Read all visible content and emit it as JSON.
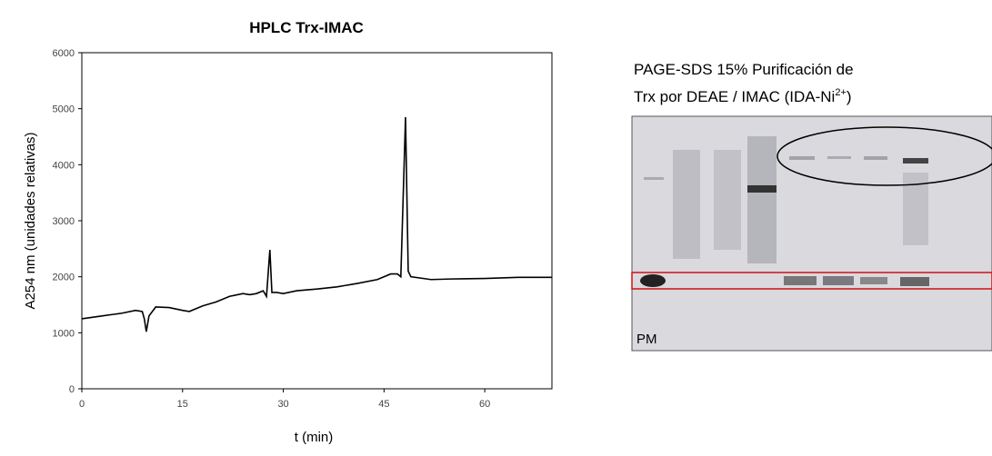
{
  "chart_data": {
    "type": "line",
    "title": "HPLC Trx-IMAC",
    "x_label": "t (min)",
    "y_label": "A254 nm (unidades relativas)",
    "x": [
      0,
      3,
      6,
      8,
      9,
      9.3,
      9.6,
      10,
      11,
      13,
      15,
      16,
      18,
      20,
      22,
      24,
      25,
      26,
      27,
      27.5,
      28,
      28.3,
      29,
      30,
      32,
      35,
      38,
      41,
      44,
      46,
      47,
      47.5,
      48.2,
      48.6,
      49,
      52,
      55,
      60,
      65,
      70
    ],
    "series": [
      {
        "color": "#000000",
        "values": [
          1250,
          1300,
          1350,
          1400,
          1380,
          1250,
          1020,
          1300,
          1460,
          1450,
          1400,
          1380,
          1480,
          1550,
          1650,
          1700,
          1680,
          1700,
          1750,
          1650,
          2480,
          1720,
          1720,
          1700,
          1750,
          1780,
          1820,
          1880,
          1950,
          2050,
          2050,
          2000,
          4850,
          2100,
          2000,
          1950,
          1960,
          1970,
          1990,
          1990
        ]
      }
    ],
    "xlim": [
      0,
      70
    ],
    "ylim": [
      0,
      6000
    ],
    "xticks": [
      0,
      15,
      30,
      45,
      60
    ],
    "yticks": [
      0,
      1000,
      2000,
      3000,
      4000,
      5000,
      6000
    ],
    "grid": false
  },
  "gel": {
    "title_line_1": "PAGE-SDS 15% Purificación de",
    "title_line_2": "Trx por DEAE / IMAC (IDA-Ni",
    "superscript": "2+",
    "title_end": ")",
    "lane_label": "PM"
  }
}
